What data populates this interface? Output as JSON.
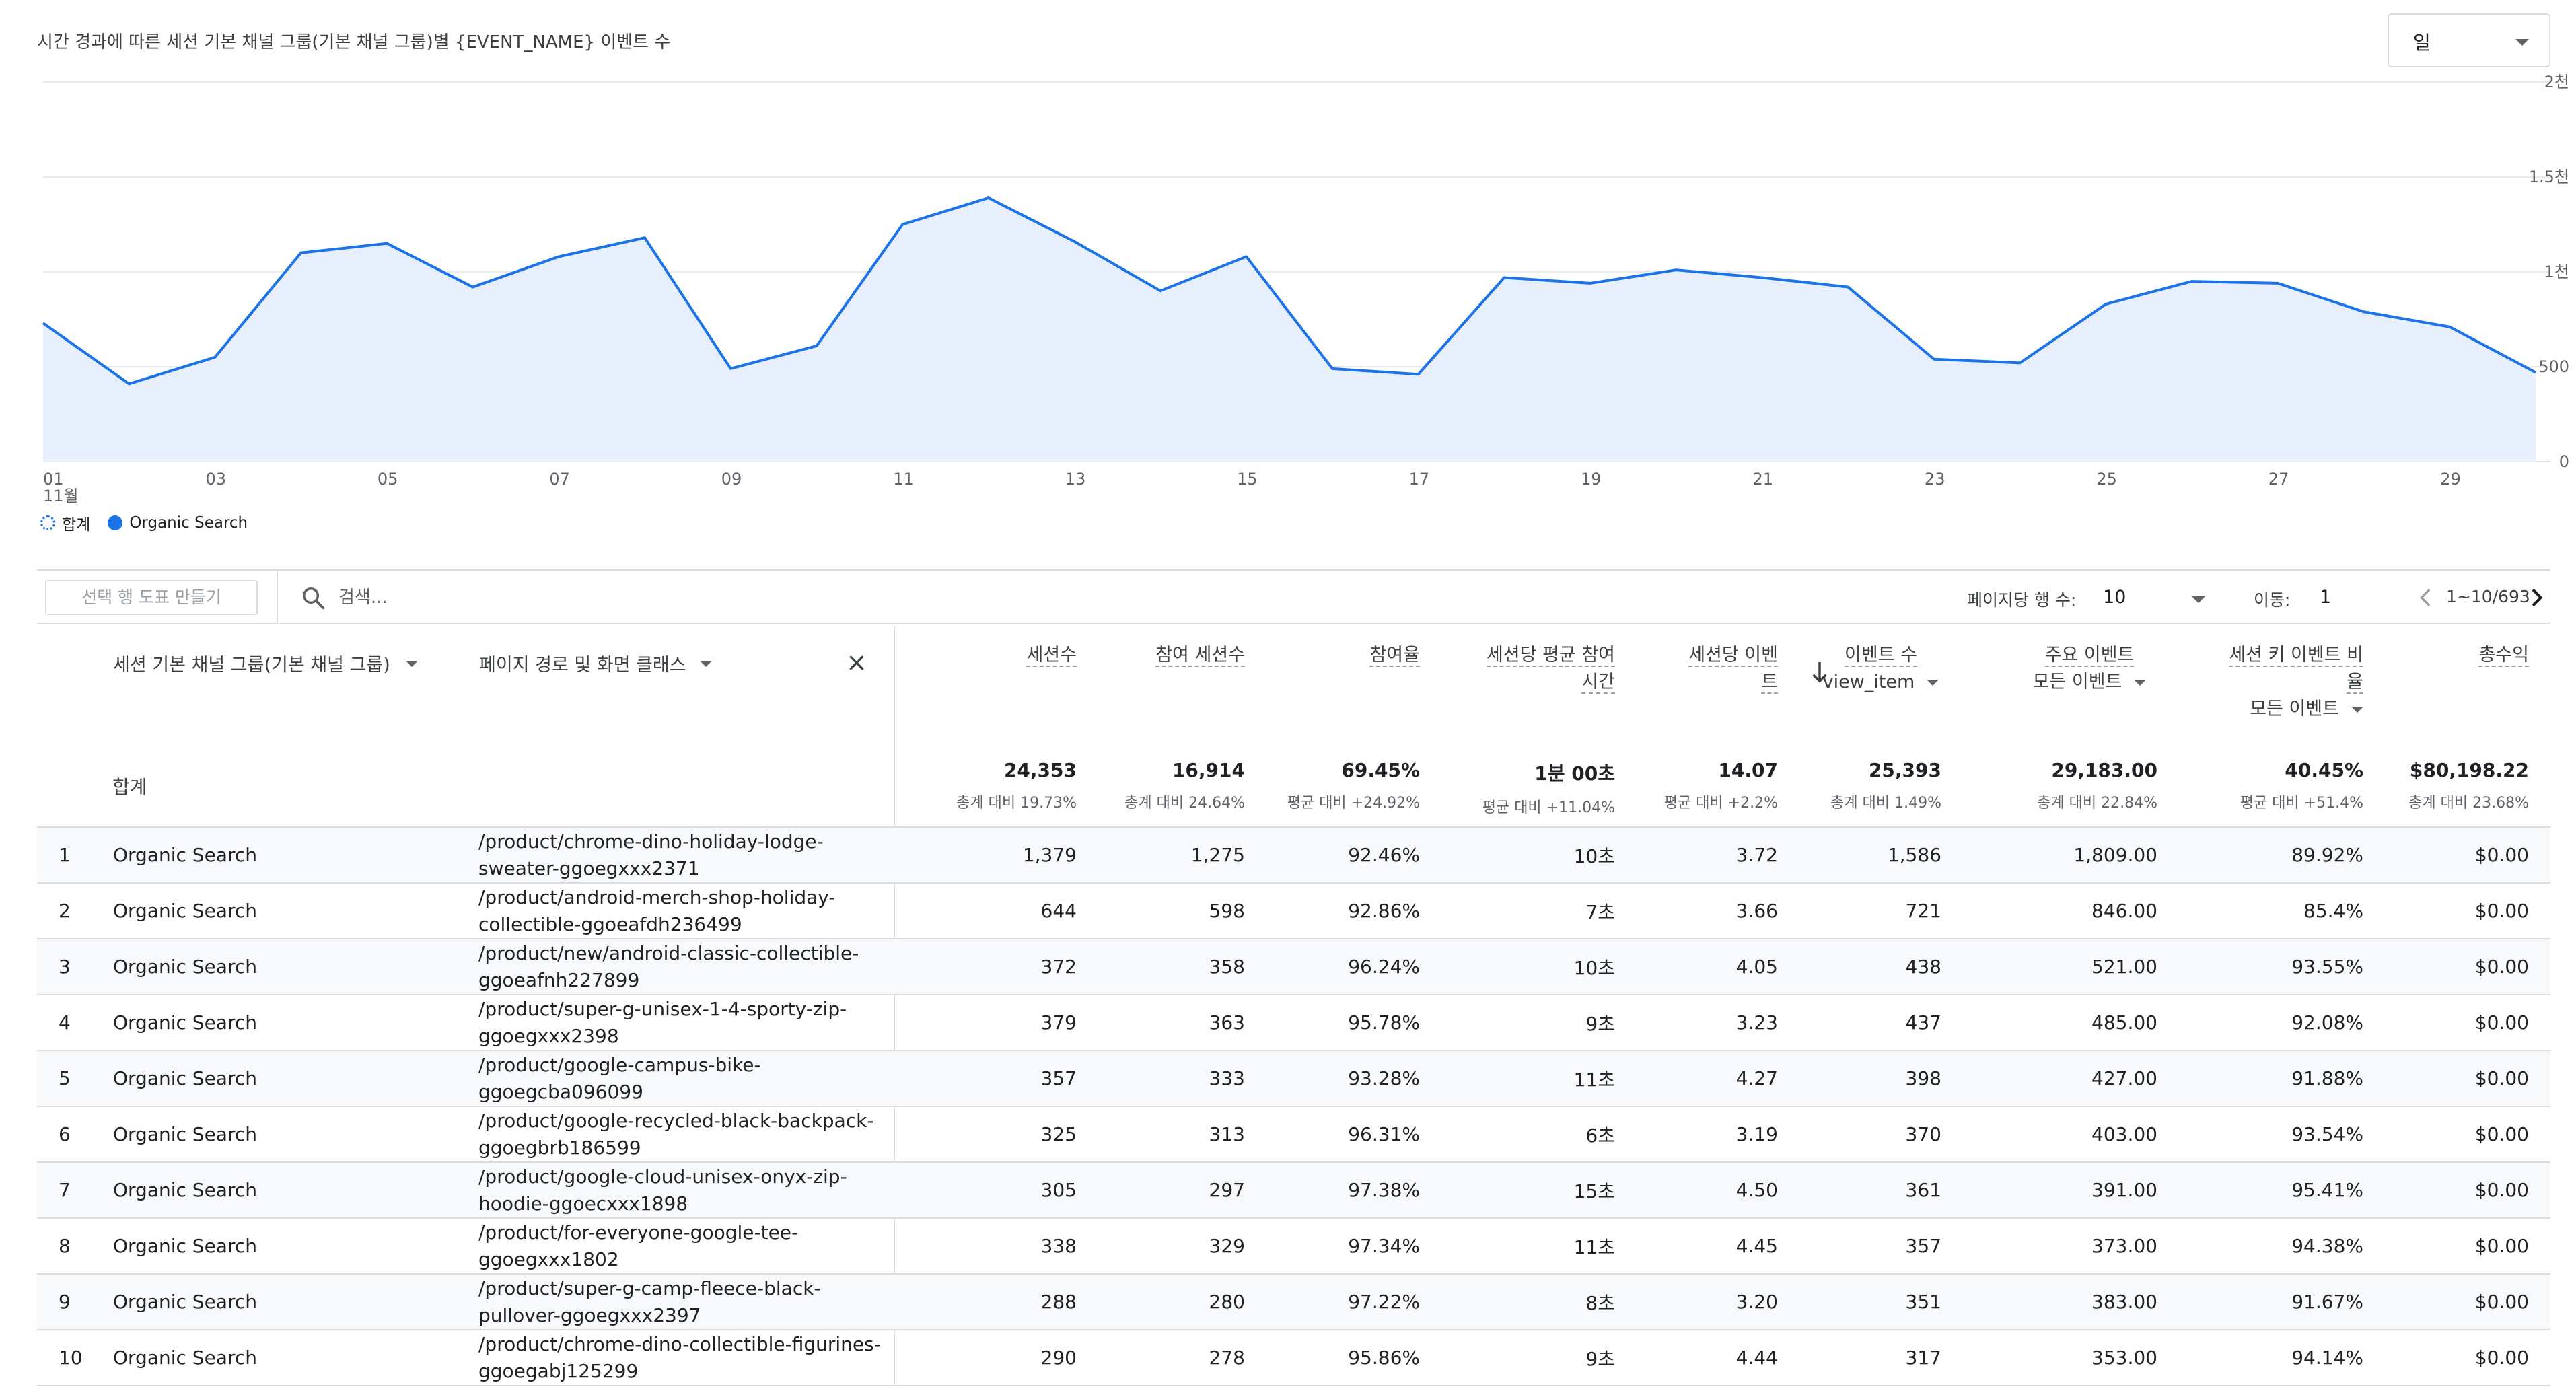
{
  "chart": {
    "title": "시간 경과에 따른 세션 기본 채널 그룹(기본 채널 그룹)별 {EVENT_NAME} 이벤트 수",
    "period_select": "일",
    "y_ticks": [
      "2천",
      "1.5천",
      "1천",
      "500",
      "0"
    ],
    "x_ticks": [
      "01",
      "03",
      "05",
      "07",
      "09",
      "11",
      "13",
      "15",
      "17",
      "19",
      "21",
      "23",
      "25",
      "27",
      "29"
    ],
    "x_month_label": "11월",
    "legend": {
      "total": "합계",
      "series": "Organic Search"
    },
    "colors": {
      "line": "#1a73e8",
      "fill": "#e8effc",
      "grid": "#e8eaed"
    }
  },
  "chart_data": {
    "type": "area",
    "x": [
      "01",
      "02",
      "03",
      "04",
      "05",
      "06",
      "07",
      "08",
      "09",
      "10",
      "11",
      "12",
      "13",
      "14",
      "15",
      "16",
      "17",
      "18",
      "19",
      "20",
      "21",
      "22",
      "23",
      "24",
      "25",
      "26",
      "27",
      "28",
      "29",
      "30"
    ],
    "series": [
      {
        "name": "Organic Search",
        "values": [
          730,
          410,
          550,
          1100,
          1150,
          920,
          1080,
          1180,
          490,
          610,
          1250,
          1390,
          1160,
          900,
          1080,
          490,
          460,
          970,
          940,
          1010,
          970,
          920,
          540,
          520,
          830,
          950,
          940,
          790,
          710,
          470
        ]
      }
    ],
    "ylim": [
      0,
      2000
    ],
    "y_ticks": [
      "2천",
      "1.5천",
      "1천",
      "500",
      "0"
    ],
    "grid": true,
    "legend": "bottom-left"
  },
  "toolbar": {
    "create_chart_label": "선택 행 도표 만들기",
    "search_placeholder": "검색...",
    "rows_per_page_label": "페이지당 행 수:",
    "rows_per_page_value": "10",
    "goto_label": "이동:",
    "goto_value": "1",
    "pagination": "1~10/693"
  },
  "table": {
    "dims": [
      "세션 기본 채널 그룹(기본 채널 그룹)",
      "페이지 경로 및 화면 클래스"
    ],
    "headers": {
      "sessions": "세션수",
      "engaged": "참여 세션수",
      "engagement_rate": "참여율",
      "avg_time_1": "세션당 평균 참여",
      "avg_time_2": "시간",
      "events_per_1": "세션당 이벤",
      "events_per_2": "트",
      "events": "이벤트 수",
      "events_filter": "view_item",
      "key_events": "주요 이벤트",
      "key_events_filter": "모든 이벤트",
      "key_rate_1": "세션 키 이벤트 비",
      "key_rate_2": "율",
      "key_rate_filter": "모든 이벤트",
      "revenue": "총수익"
    },
    "totals": {
      "label": "합계",
      "values": [
        "24,353",
        "16,914",
        "69.45%",
        "1분 00초",
        "14.07",
        "25,393",
        "29,183.00",
        "40.45%",
        "$80,198.22"
      ],
      "subs": [
        "총계 대비 19.73%",
        "총계 대비 24.64%",
        "평균 대비 +24.92%",
        "평균 대비 +11.04%",
        "평균 대비 +2.2%",
        "총계 대비 1.49%",
        "총계 대비 22.84%",
        "평균 대비 +51.4%",
        "총계 대비 23.68%"
      ]
    },
    "rows": [
      {
        "idx": "1",
        "channel": "Organic Search",
        "page": "/product/chrome-dino-holiday-lodge-sweater-ggoegxxx2371",
        "vals": [
          "1,379",
          "1,275",
          "92.46%",
          "10초",
          "3.72",
          "1,586",
          "1,809.00",
          "89.92%",
          "$0.00"
        ]
      },
      {
        "idx": "2",
        "channel": "Organic Search",
        "page": "/product/android-merch-shop-holiday-collectible-ggoeafdh236499",
        "vals": [
          "644",
          "598",
          "92.86%",
          "7초",
          "3.66",
          "721",
          "846.00",
          "85.4%",
          "$0.00"
        ]
      },
      {
        "idx": "3",
        "channel": "Organic Search",
        "page": "/product/new/android-classic-collectible-ggoeafnh227899",
        "vals": [
          "372",
          "358",
          "96.24%",
          "10초",
          "4.05",
          "438",
          "521.00",
          "93.55%",
          "$0.00"
        ]
      },
      {
        "idx": "4",
        "channel": "Organic Search",
        "page": "/product/super-g-unisex-1-4-sporty-zip-ggoegxxx2398",
        "vals": [
          "379",
          "363",
          "95.78%",
          "9초",
          "3.23",
          "437",
          "485.00",
          "92.08%",
          "$0.00"
        ]
      },
      {
        "idx": "5",
        "channel": "Organic Search",
        "page": "/product/google-campus-bike-ggoegcba096099",
        "vals": [
          "357",
          "333",
          "93.28%",
          "11초",
          "4.27",
          "398",
          "427.00",
          "91.88%",
          "$0.00"
        ]
      },
      {
        "idx": "6",
        "channel": "Organic Search",
        "page": "/product/google-recycled-black-backpack-ggoegbrb186599",
        "vals": [
          "325",
          "313",
          "96.31%",
          "6초",
          "3.19",
          "370",
          "403.00",
          "93.54%",
          "$0.00"
        ]
      },
      {
        "idx": "7",
        "channel": "Organic Search",
        "page": "/product/google-cloud-unisex-onyx-zip-hoodie-ggoecxxx1898",
        "vals": [
          "305",
          "297",
          "97.38%",
          "15초",
          "4.50",
          "361",
          "391.00",
          "95.41%",
          "$0.00"
        ]
      },
      {
        "idx": "8",
        "channel": "Organic Search",
        "page": "/product/for-everyone-google-tee-ggoegxxx1802",
        "vals": [
          "338",
          "329",
          "97.34%",
          "11초",
          "4.45",
          "357",
          "373.00",
          "94.38%",
          "$0.00"
        ]
      },
      {
        "idx": "9",
        "channel": "Organic Search",
        "page": "/product/super-g-camp-fleece-black-pullover-ggoegxxx2397",
        "vals": [
          "288",
          "280",
          "97.22%",
          "8초",
          "3.20",
          "351",
          "383.00",
          "91.67%",
          "$0.00"
        ]
      },
      {
        "idx": "10",
        "channel": "Organic Search",
        "page": "/product/chrome-dino-collectible-figurines-ggoegabj125299",
        "vals": [
          "290",
          "278",
          "95.86%",
          "9초",
          "4.44",
          "317",
          "353.00",
          "94.14%",
          "$0.00"
        ]
      }
    ]
  }
}
